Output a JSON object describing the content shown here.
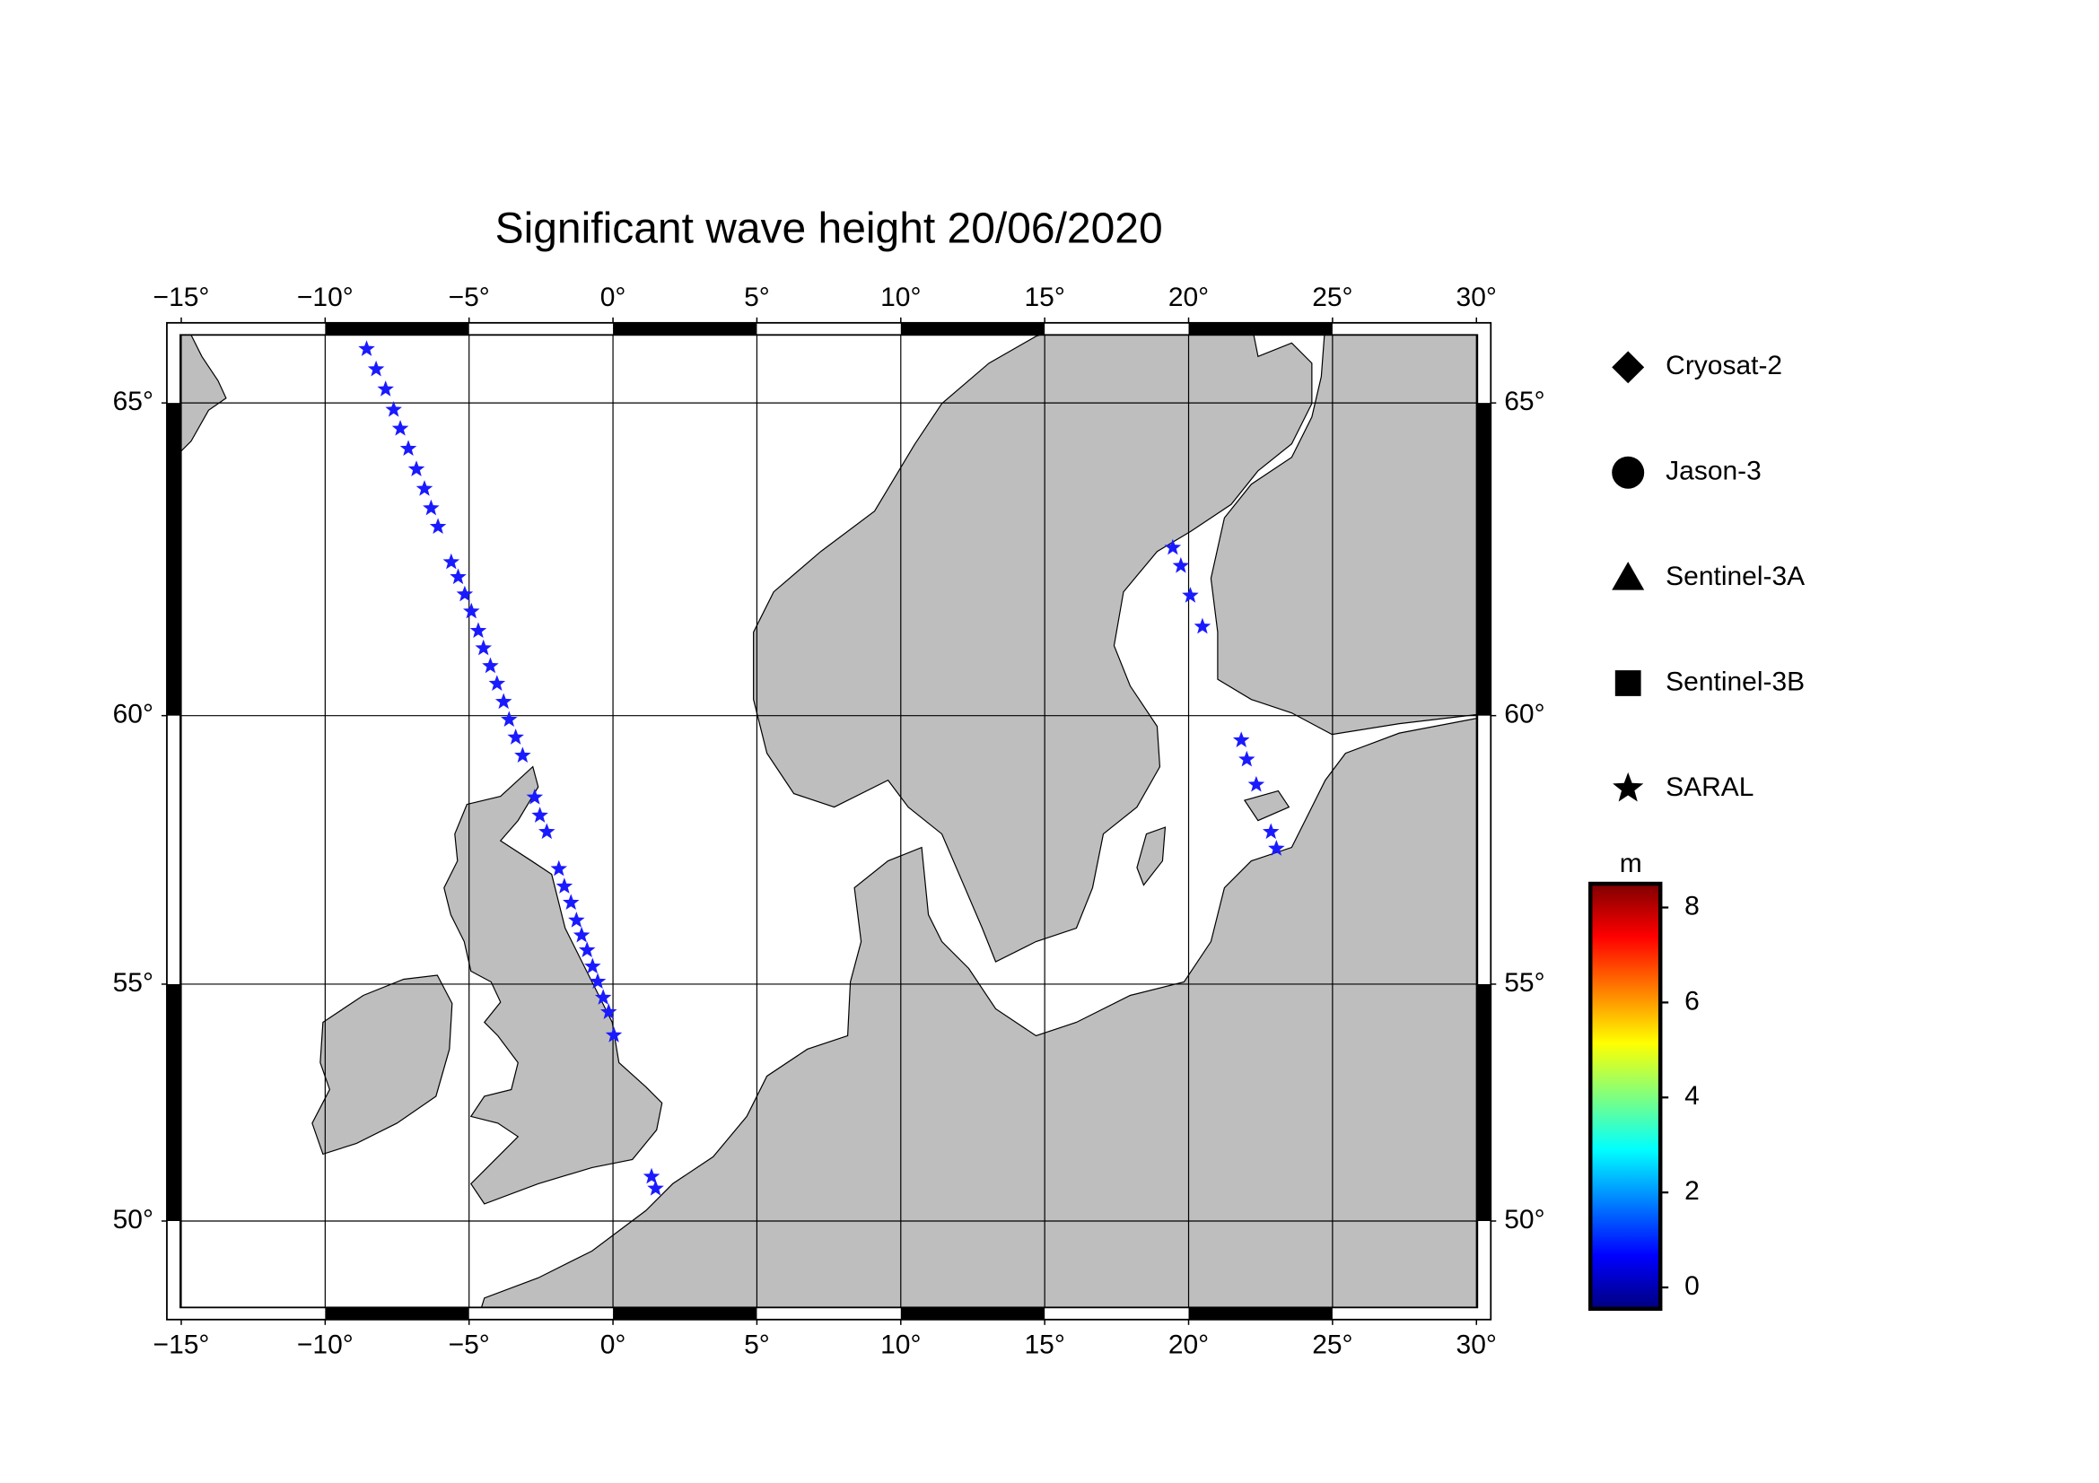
{
  "chart_data": {
    "type": "scatter",
    "projection": "mercator",
    "title": "Significant wave height 20/06/2020",
    "xlim": [
      -15.5,
      30.5
    ],
    "ylim": [
      47.75,
      66.15
    ],
    "xticks": [
      {
        "value": -15,
        "label": "−15°"
      },
      {
        "value": -10,
        "label": "−10°"
      },
      {
        "value": -5,
        "label": "−5°"
      },
      {
        "value": 0,
        "label": "0°"
      },
      {
        "value": 5,
        "label": "5°"
      },
      {
        "value": 10,
        "label": "10°"
      },
      {
        "value": 15,
        "label": "15°"
      },
      {
        "value": 20,
        "label": "20°"
      },
      {
        "value": 25,
        "label": "25°"
      },
      {
        "value": 30,
        "label": "30°"
      }
    ],
    "yticks": [
      {
        "value": 50,
        "label": "50°"
      },
      {
        "value": 55,
        "label": "55°"
      },
      {
        "value": 60,
        "label": "60°"
      },
      {
        "value": 65,
        "label": "65°"
      }
    ],
    "grid": true,
    "series": [
      {
        "name": "Cryosat-2",
        "marker": "diamond",
        "color": "#000000",
        "x": [],
        "y": []
      },
      {
        "name": "Jason-3",
        "marker": "circle",
        "color": "#000000",
        "x": [],
        "y": []
      },
      {
        "name": "Sentinel-3A",
        "marker": "triangle",
        "color": "#000000",
        "x": [],
        "y": []
      },
      {
        "name": "Sentinel-3B",
        "marker": "square",
        "color": "#000000",
        "x": [],
        "y": []
      },
      {
        "name": "SARAL",
        "marker": "star",
        "color": "#1a1aff",
        "x": [
          -8.56,
          -8.23,
          -7.9,
          -7.62,
          -7.39,
          -7.11,
          -6.83,
          -6.55,
          -6.32,
          -6.08,
          -5.62,
          -5.38,
          -5.15,
          -4.92,
          -4.68,
          -4.5,
          -4.26,
          -4.03,
          -3.8,
          -3.61,
          -3.38,
          -3.14,
          -2.72,
          -2.54,
          -2.3,
          -1.88,
          -1.69,
          -1.46,
          -1.27,
          -1.09,
          -0.9,
          -0.71,
          -0.53,
          -0.34,
          -0.15,
          0.03,
          1.34,
          1.48,
          19.45,
          19.73,
          20.06,
          20.48,
          21.83,
          22.02,
          22.35,
          22.86,
          23.05
        ],
        "y": [
          65.78,
          65.49,
          65.2,
          64.9,
          64.62,
          64.32,
          64.01,
          63.71,
          63.41,
          63.12,
          62.56,
          62.32,
          62.04,
          61.76,
          61.44,
          61.15,
          60.85,
          60.55,
          60.24,
          59.93,
          59.62,
          59.3,
          58.55,
          58.22,
          57.92,
          57.23,
          56.9,
          56.59,
          56.25,
          55.96,
          55.67,
          55.35,
          55.05,
          54.73,
          54.44,
          53.97,
          50.98,
          50.72,
          62.79,
          62.5,
          62.02,
          61.51,
          59.57,
          59.23,
          58.78,
          57.92,
          57.61
        ]
      }
    ],
    "colorbar": {
      "label": "m",
      "lim": [
        -0.45,
        8.5
      ],
      "ticks": [
        0,
        2,
        4,
        6,
        8
      ],
      "colormap": [
        "#00007f",
        "#0000ff",
        "#007fff",
        "#00ffff",
        "#7fff7f",
        "#ffff00",
        "#ff7f00",
        "#ff0000",
        "#7f0000"
      ]
    }
  }
}
